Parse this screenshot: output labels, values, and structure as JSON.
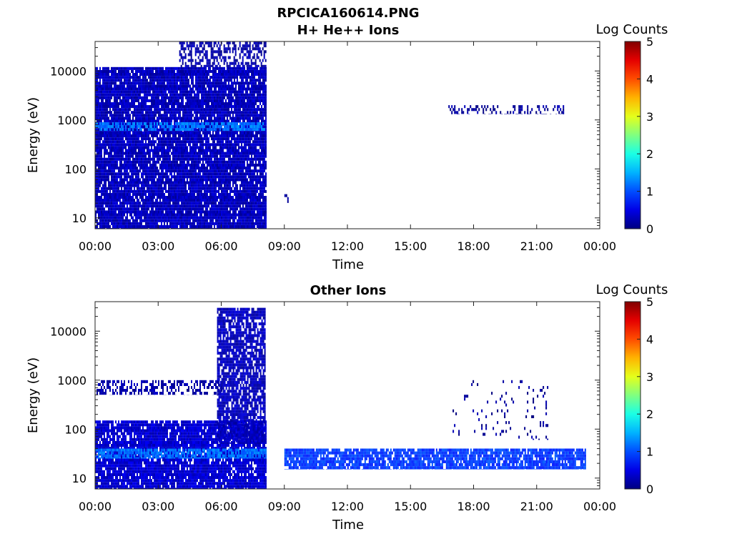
{
  "figure_title": "RPCICA160614.PNG",
  "chart_data": [
    {
      "type": "heatmap",
      "title": "H+ He++ Ions",
      "xlabel": "Time",
      "ylabel": "Energy (eV)",
      "y_scale": "log",
      "ylim": [
        6,
        40000
      ],
      "xlim": [
        "00:00",
        "24:00"
      ],
      "x_ticks": [
        "00:00",
        "03:00",
        "06:00",
        "09:00",
        "12:00",
        "15:00",
        "18:00",
        "21:00",
        "00:00"
      ],
      "y_ticks": [
        "10",
        "100",
        "1000",
        "10000"
      ],
      "colorbar": {
        "label": "Log Counts",
        "min": 0,
        "max": 5,
        "ticks": [
          "0",
          "1",
          "2",
          "3",
          "4",
          "5"
        ],
        "colormap": "jet"
      },
      "regions": [
        {
          "t_start_h": 0.0,
          "t_end_h": 8.1,
          "e_min": 6,
          "e_max": 12000,
          "log_counts": 0.3,
          "density": 0.92
        },
        {
          "t_start_h": 4.0,
          "t_end_h": 8.1,
          "e_min": 12000,
          "e_max": 40000,
          "log_counts": 0.2,
          "density": 0.55
        },
        {
          "t_start_h": 0.0,
          "t_end_h": 8.1,
          "e_min": 600,
          "e_max": 900,
          "log_counts": 1.2,
          "density": 0.7
        },
        {
          "t_start_h": 9.0,
          "t_end_h": 9.2,
          "e_min": 20,
          "e_max": 35,
          "log_counts": 0.2,
          "density": 0.5
        },
        {
          "t_start_h": 16.8,
          "t_end_h": 22.3,
          "e_min": 1300,
          "e_max": 2000,
          "log_counts": 0.15,
          "density": 0.35
        }
      ]
    },
    {
      "type": "heatmap",
      "title": "Other Ions",
      "xlabel": "Time",
      "ylabel": "Energy (eV)",
      "y_scale": "log",
      "ylim": [
        6,
        40000
      ],
      "xlim": [
        "00:00",
        "24:00"
      ],
      "x_ticks": [
        "00:00",
        "03:00",
        "06:00",
        "09:00",
        "12:00",
        "15:00",
        "18:00",
        "21:00",
        "00:00"
      ],
      "y_ticks": [
        "10",
        "100",
        "1000",
        "10000"
      ],
      "colorbar": {
        "label": "Log Counts",
        "min": 0,
        "max": 5,
        "ticks": [
          "0",
          "1",
          "2",
          "3",
          "4",
          "5"
        ],
        "colormap": "jet"
      },
      "regions": [
        {
          "t_start_h": 0.0,
          "t_end_h": 8.1,
          "e_min": 6,
          "e_max": 150,
          "log_counts": 0.4,
          "density": 0.9
        },
        {
          "t_start_h": 0.0,
          "t_end_h": 8.1,
          "e_min": 25,
          "e_max": 40,
          "log_counts": 1.2,
          "density": 0.8
        },
        {
          "t_start_h": 0.0,
          "t_end_h": 6.0,
          "e_min": 500,
          "e_max": 1000,
          "log_counts": 0.2,
          "density": 0.45
        },
        {
          "t_start_h": 5.8,
          "t_end_h": 8.1,
          "e_min": 50,
          "e_max": 30000,
          "log_counts": 0.3,
          "density": 0.8
        },
        {
          "t_start_h": 9.0,
          "t_end_h": 23.3,
          "e_min": 15,
          "e_max": 40,
          "log_counts": 0.9,
          "density": 0.85
        },
        {
          "t_start_h": 17.0,
          "t_end_h": 21.5,
          "e_min": 60,
          "e_max": 1000,
          "log_counts": 0.1,
          "density": 0.06
        }
      ]
    }
  ]
}
